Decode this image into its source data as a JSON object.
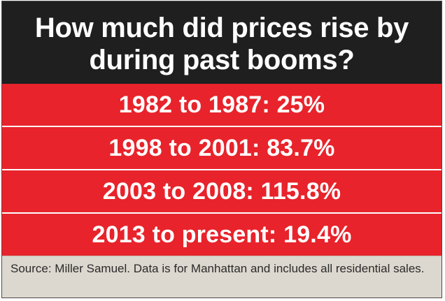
{
  "title": "How much did prices rise by during past booms?",
  "booms": [
    {
      "label": "1982 to 1987: 25%"
    },
    {
      "label": "1998 to 2001: 83.7%"
    },
    {
      "label": "2003 to 2008: 115.8%"
    },
    {
      "label": "2013 to present: 19.4%"
    }
  ],
  "footer": {
    "source": "Source: Miller Samuel. Data is for Manhattan and includes all residential sales."
  },
  "colors": {
    "header_bg": "#1f1f1f",
    "row_bg": "#e8232b",
    "footer_bg": "#ddd8cf"
  }
}
